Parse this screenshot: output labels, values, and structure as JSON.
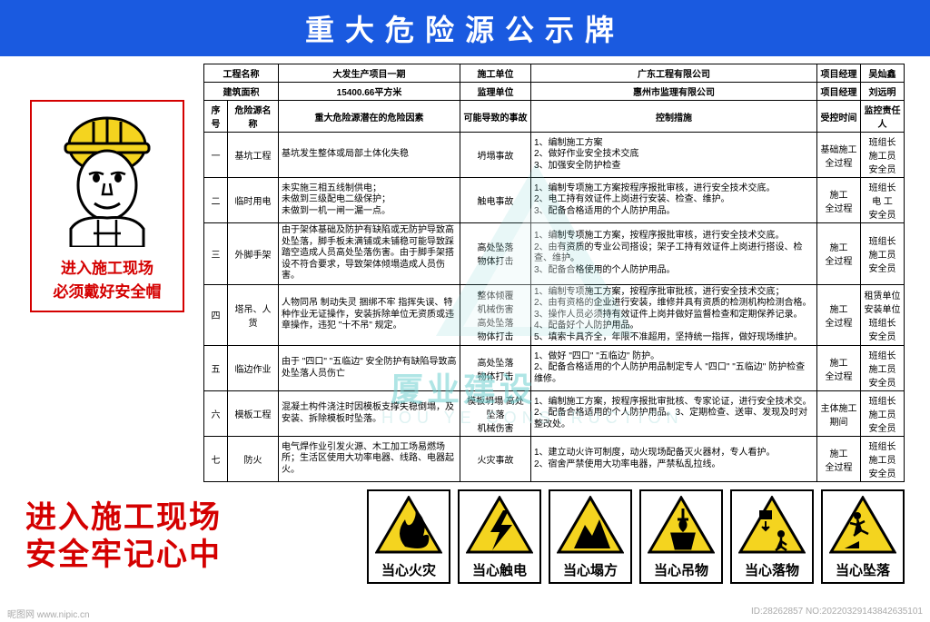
{
  "colors": {
    "banner_bg": "#1a5ae0",
    "accent": "#d40000",
    "watermark": "#6fd0d0"
  },
  "banner": {
    "title": "重大危险源公示牌"
  },
  "worker": {
    "line1": "进入施工现场",
    "line2": "必须戴好安全帽"
  },
  "slogan": {
    "line1": "进入施工现场",
    "line2": "安全牢记心中"
  },
  "header_rows": [
    {
      "label1": "工程名称",
      "val1": "大发生产项目一期",
      "label2": "施工单位",
      "val2": "广东工程有限公司",
      "label3": "项目经理",
      "val3": "吴灿鑫"
    },
    {
      "label1": "建筑面积",
      "val1": "15400.66平方米",
      "label2": "监理单位",
      "val2": "惠州市监理有限公司",
      "label3": "项目经理",
      "val3": "刘远明"
    }
  ],
  "col_headers": {
    "seq": "序号",
    "name": "危险源名称",
    "factor": "重大危险源潜在的危险因素",
    "accident": "可能导致的事故",
    "measure": "控制措施",
    "time": "受控时间",
    "person": "监控责任人"
  },
  "rows": [
    {
      "seq": "一",
      "name": "基坑工程",
      "factor": "基坑发生整体或局部土体化失稳",
      "accident": "坍塌事故",
      "measure": "1、编制施工方案\n2、做好作业安全技术交底\n3、加强安全防护检查",
      "time": "基础施工\n全过程",
      "person": "班组长\n施工员\n安全员"
    },
    {
      "seq": "二",
      "name": "临时用电",
      "factor": "未实施三相五线制供电；\n未做到三级配电二级保护；\n未做到一机一闸一漏一点。",
      "accident": "触电事故",
      "measure": "1、编制专项施工方案按程序报批审核，进行安全技术交底。\n2、电工持有效证件上岗进行安装、检查、维护。\n3、配备合格适用的个人防护用品。",
      "time": "施工\n全过程",
      "person": "班组长\n电 工\n安全员"
    },
    {
      "seq": "三",
      "name": "外脚手架",
      "factor": "由于架体基础及防护有缺陷或无防护导致高处坠落，脚手板未满铺或未铺稳可能导致踩踏空造成人员高处坠落伤害。由于脚手架搭设不符合要求，导致架体倾塌造成人员伤害。",
      "accident": "高处坠落\n物体打击",
      "measure": "1、编制专项施工方案，按程序报批审核，进行安全技术交底。\n2、由有资质的专业公司搭设；架子工持有效证件上岗进行搭设、检查、维护。\n3、配备合格使用的个人防护用品。",
      "time": "施工\n全过程",
      "person": "班组长\n施工员\n安全员"
    },
    {
      "seq": "四",
      "name": "塔吊、人货",
      "factor": "人物同吊 制动失灵 捆绑不牢 指挥失误、特种作业无证操作，安装拆除单位无资质或违章操作，违犯 \"十不吊\" 规定。",
      "accident": "整体倾覆\n机械伤害\n高处坠落\n物体打击",
      "measure": "1、编制专项施工方案，按程序批审批核，进行安全技术交底；\n2、由有资格的企业进行安装，维修并具有资质的检测机构检测合格。\n3、操作人员必须持有效证件上岗并做好监督检查和定期保养记录。\n4、配备好个人防护用品。\n5、填索卡具齐全，年限不准超用，坚持统一指挥，做好现场维护。",
      "time": "施工\n全过程",
      "person": "租赁单位\n安装单位\n班组长\n安全员"
    },
    {
      "seq": "五",
      "name": "临边作业",
      "factor": "由于 \"四口\" \"五临边\" 安全防护有缺陷导致高处坠落人员伤亡",
      "accident": "高处坠落\n物体打击",
      "measure": "1、做好 \"四口\" \"五临边\" 防护。\n2、配备合格适用的个人防护用品制定专人 \"四口\" \"五临边\" 防护检查维修。",
      "time": "施工\n全过程",
      "person": "班组长\n施工员\n安全员"
    },
    {
      "seq": "六",
      "name": "模板工程",
      "factor": "混凝土构件浇注时因模板支撑失稳倒塌，及安装、拆除模板时坠落。",
      "accident": "模板坍塌 高处坠落\n机械伤害",
      "measure": "1、编制施工方案，按程序报批审批核、专家论证，进行安全技术交。\n2、配备合格适用的个人防护用品。3、定期检查、送审、发现及时对整改处。",
      "time": "主体施工期间",
      "person": "班组长\n施工员\n安全员"
    },
    {
      "seq": "七",
      "name": "防火",
      "factor": "电气焊作业引发火源、木工加工场易燃场所；生活区使用大功率电器、线路、电器起火。",
      "accident": "火灾事故",
      "measure": "1、建立动火许可制度，动火现场配备灭火器材，专人看护。\n2、宿舍严禁使用大功率电器，严禁私乱拉线。",
      "time": "施工\n全过程",
      "person": "班组长\n施工员\n安全员"
    }
  ],
  "signs": [
    {
      "id": "fire",
      "label": "当心火灾"
    },
    {
      "id": "shock",
      "label": "当心触电"
    },
    {
      "id": "collapse",
      "label": "当心塌方"
    },
    {
      "id": "hoist",
      "label": "当心吊物"
    },
    {
      "id": "falling-obj",
      "label": "当心落物"
    },
    {
      "id": "fall",
      "label": "当心坠落"
    }
  ],
  "watermark": {
    "main": "厦业建设",
    "sub": "HOU YE CONSTRUCTION"
  },
  "footer": {
    "left": "昵图网 www.nipic.cn",
    "right": "ID:28262857 NO:20220329143842635101"
  }
}
